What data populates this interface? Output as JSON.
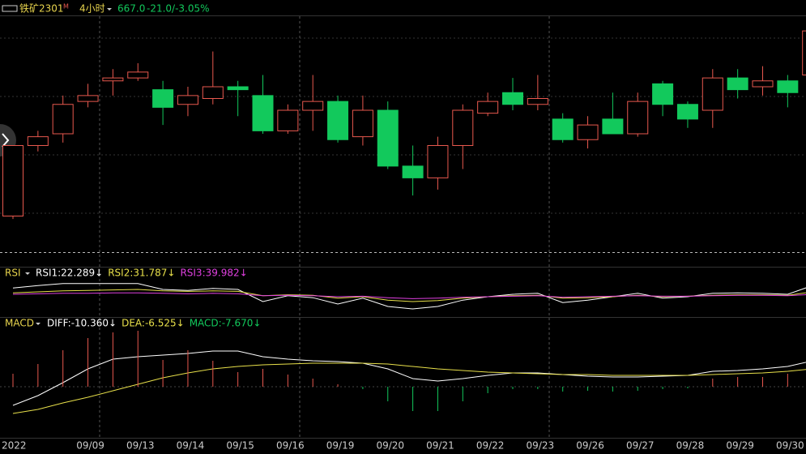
{
  "header": {
    "symbol": "铁矿2301",
    "badge": "M",
    "period": "4小时",
    "price": "667.0",
    "change": "-21.0/-3.05%"
  },
  "chart_data": [
    {
      "type": "candlestick",
      "categories": [
        "2022",
        null,
        null,
        "09/09",
        null,
        "09/13",
        null,
        "09/14",
        null,
        "09/15",
        null,
        "09/16",
        null,
        "09/19",
        null,
        "09/20",
        null,
        "09/21",
        null,
        "09/22",
        null,
        "09/23",
        null,
        "09/26",
        null,
        "09/27",
        null,
        "09/28",
        null,
        "09/29",
        null,
        "09/30",
        null
      ],
      "open": [
        604,
        628,
        632,
        643,
        650,
        651,
        647,
        642,
        644,
        648,
        645,
        633,
        640,
        643,
        631,
        640,
        621,
        617,
        628,
        639,
        646,
        642,
        637,
        630,
        637,
        632,
        649,
        642,
        640,
        651,
        648,
        650,
        652
      ],
      "high": [
        628,
        633,
        645,
        649,
        654,
        656,
        650,
        648,
        660,
        650,
        652,
        642,
        652,
        645,
        645,
        643,
        628,
        631,
        642,
        646,
        651,
        652,
        639,
        638,
        646,
        646,
        650,
        643,
        654,
        654,
        655,
        652,
        672
      ],
      "low": [
        603,
        626,
        629,
        641,
        645,
        650,
        635,
        638,
        642,
        638,
        632,
        632,
        633,
        629,
        628,
        620,
        611,
        613,
        620,
        638,
        640,
        640,
        629,
        627,
        632,
        631,
        638,
        634,
        634,
        644,
        645,
        641,
        651
      ],
      "close": [
        628,
        631,
        642,
        645,
        651,
        653,
        641,
        645,
        648,
        647,
        633,
        640,
        643,
        630,
        640,
        621,
        617,
        628,
        640,
        643,
        642,
        644,
        630,
        635,
        632,
        643,
        642,
        637,
        651,
        647,
        650,
        646,
        667
      ],
      "up_color": "#e8584e",
      "down_color": "#12c95c",
      "ylim": [
        592,
        672
      ]
    },
    {
      "type": "line",
      "title": "RSI",
      "ylim": [
        0,
        100
      ],
      "series": [
        {
          "name": "RSI1:22.289↓",
          "color": "#ffffff",
          "values": [
            58,
            63,
            67,
            67,
            67,
            67,
            55,
            53,
            57,
            55,
            30,
            42,
            38,
            25,
            37,
            20,
            15,
            20,
            33,
            40,
            45,
            47,
            28,
            33,
            40,
            47,
            37,
            40,
            47,
            48,
            47,
            45,
            63
          ]
        },
        {
          "name": "RSI2:31.787↓",
          "color": "#e8e04a",
          "values": [
            48,
            50,
            52,
            53,
            54,
            55,
            52,
            51,
            52,
            51,
            42,
            44,
            43,
            37,
            40,
            33,
            30,
            32,
            37,
            40,
            42,
            43,
            37,
            38,
            40,
            43,
            40,
            41,
            43,
            44,
            44,
            43,
            50
          ]
        },
        {
          "name": "RSI3:39.982↓",
          "color": "#e040e0",
          "values": [
            45,
            46,
            47,
            47,
            48,
            48,
            47,
            46,
            47,
            46,
            42,
            43,
            42,
            40,
            41,
            38,
            36,
            37,
            39,
            40,
            41,
            42,
            39,
            40,
            41,
            42,
            41,
            41,
            42,
            43,
            43,
            42,
            45
          ]
        }
      ]
    },
    {
      "type": "macd",
      "title": "MACD",
      "ylim": [
        -12.6,
        16.4
      ],
      "series": [
        {
          "name": "DIFF:-10.360↓",
          "color": "#ffffff",
          "values": [
            -4.6,
            -2.2,
            1,
            4.4,
            6.8,
            7.4,
            7.8,
            8.2,
            8.8,
            8.8,
            7.4,
            6.8,
            6.4,
            6.2,
            5.8,
            4.4,
            2,
            1.4,
            2,
            2.8,
            3.4,
            3.4,
            3,
            2.6,
            2.4,
            2.4,
            2.6,
            2.8,
            3.8,
            4,
            4.4,
            5,
            6.4
          ]
        },
        {
          "name": "DEA:-6.525↓",
          "color": "#e8e04a",
          "values": [
            -6.6,
            -5.6,
            -4,
            -2.6,
            -1,
            0.6,
            2.2,
            3.4,
            4.4,
            5,
            5.4,
            5.6,
            5.8,
            5.8,
            5.8,
            5.6,
            5,
            4.4,
            4,
            3.6,
            3.4,
            3.2,
            3,
            3,
            2.8,
            2.8,
            2.8,
            2.8,
            3,
            3.2,
            3.4,
            3.8,
            4.4
          ]
        },
        {
          "name": "MACD:-7.670↓",
          "color": "#e8584e",
          "down_color": "#12c95c",
          "style": "bar",
          "values": [
            3.2,
            5.6,
            9,
            12,
            13.4,
            13.8,
            6.6,
            9,
            6.4,
            3.6,
            4.4,
            3,
            2,
            0.6,
            -0.6,
            -3.6,
            -6,
            -6,
            -3.6,
            -1.6,
            -0.6,
            -0.6,
            -1.2,
            -1,
            -1.2,
            -1,
            -0.6,
            -0.4,
            2,
            2.4,
            2.4,
            3.2,
            3
          ]
        }
      ]
    }
  ]
}
